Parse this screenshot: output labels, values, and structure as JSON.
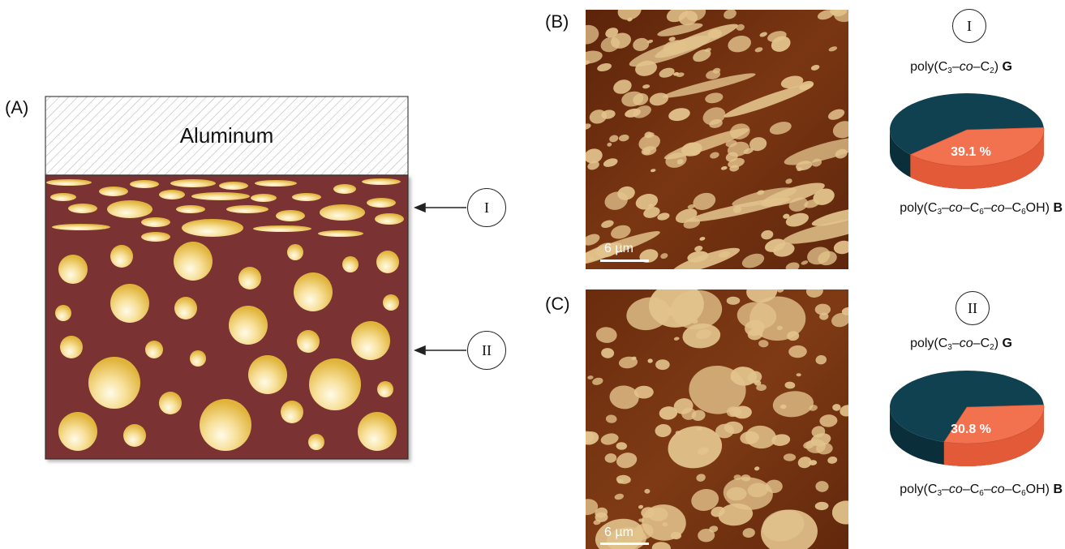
{
  "panels": {
    "A": {
      "label": "(A)",
      "metal_label": "Aluminum",
      "arrow_I": "I",
      "arrow_II": "II",
      "matrix_color": "#7a3030",
      "droplet_color": "#f3cf6a"
    },
    "B": {
      "label": "(B)",
      "scale": "6 µm",
      "region": "I",
      "legend_top_prefix": "poly(C",
      "legend_top_s1": "3",
      "legend_top_co": "co",
      "legend_top_s2": "2",
      "legend_top_close": ")",
      "legend_top_bold": "G",
      "legend_bottom_prefix": "poly(C",
      "legend_bottom_s1": "3",
      "legend_bottom_co1": "co",
      "legend_bottom_s2": "6",
      "legend_bottom_co2": "co",
      "legend_bottom_s3": "6",
      "legend_bottom_close": "OH)",
      "legend_bottom_bold": "B",
      "percent_label": "39.1 %",
      "percent_value": 39.1
    },
    "C": {
      "label": "(C)",
      "scale": "6 µm",
      "region": "II",
      "legend_top_prefix": "poly(C",
      "legend_top_s1": "3",
      "legend_top_co": "co",
      "legend_top_s2": "2",
      "legend_top_close": ")",
      "legend_top_bold": "G",
      "legend_bottom_prefix": "poly(C",
      "legend_bottom_s1": "3",
      "legend_bottom_co1": "co",
      "legend_bottom_s2": "6",
      "legend_bottom_co2": "co",
      "legend_bottom_s3": "6",
      "legend_bottom_close": "OH)",
      "legend_bottom_bold": "B",
      "percent_label": "30.8 %",
      "percent_value": 30.8
    }
  },
  "colors": {
    "pie_major": "#0f4150",
    "pie_minor": "#f2714f",
    "afm_matrix": "#6a2d10",
    "afm_droplet": "#e3c38c"
  }
}
